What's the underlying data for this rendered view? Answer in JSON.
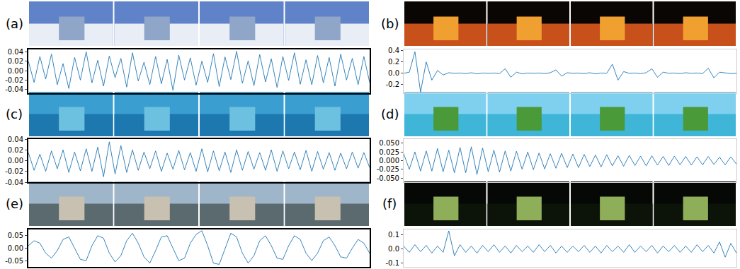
{
  "chart_data": [
    {
      "type": "line",
      "title": "(a)",
      "color": "#1f77b4",
      "tick_labels": "y",
      "values": [
        0.02,
        -0.025,
        0.03,
        -0.018,
        0.035,
        -0.03,
        0.015,
        -0.038,
        0.028,
        -0.02,
        0.04,
        -0.026,
        0.022,
        -0.033,
        0.031,
        -0.015,
        0.026,
        -0.035,
        0.038,
        -0.022,
        0.018,
        -0.03,
        0.03,
        -0.028,
        0.024,
        -0.042,
        0.033,
        -0.02,
        0.027,
        -0.031,
        0.02,
        -0.025,
        0.036,
        -0.034,
        0.029,
        -0.019,
        0.041,
        -0.027,
        0.021,
        -0.032,
        0.034,
        -0.024,
        0.025,
        -0.036,
        0.03,
        -0.021,
        0.038,
        -0.029,
        0.023,
        -0.03,
        0.032,
        -0.026,
        0.028,
        -0.033,
        0.035,
        -0.02,
        0.026,
        -0.03,
        0.03,
        -0.025
      ],
      "xlim": [
        0,
        59
      ],
      "ylim": [
        -0.048,
        0.045
      ],
      "yticks": [
        -0.04,
        -0.02,
        {
          "value": 0,
          "label": "0.00"
        },
        0.02,
        0.04
      ]
    },
    {
      "type": "line",
      "title": "(b)",
      "color": "#1f77b4",
      "tick_labels": "y",
      "values": [
        0,
        0.02,
        0.38,
        -0.33,
        0.2,
        -0.12,
        0.05,
        -0.03,
        0.01,
        0,
        0.005,
        -0.005,
        0.01,
        -0.01,
        0.005,
        0,
        0.005,
        -0.005,
        0.08,
        -0.07,
        0.02,
        -0.01,
        0.005,
        0,
        0.005,
        -0.005,
        0.01,
        0.06,
        -0.05,
        0.01,
        0,
        0.005,
        -0.005,
        0.01,
        -0.01,
        0.005,
        0,
        0.16,
        -0.12,
        0.03,
        0,
        0.005,
        -0.005,
        0.01,
        0.08,
        -0.07,
        0.02,
        0,
        0.005,
        -0.005,
        0.01,
        0,
        0.005,
        -0.005,
        0.09,
        -0.08,
        0.02,
        0.005,
        -0.005,
        0
      ],
      "xlim": [
        0,
        59
      ],
      "ylim": [
        -0.35,
        0.42
      ],
      "yticks": [
        -0.2,
        {
          "value": 0,
          "label": "0.0"
        },
        0.2,
        0.4
      ]
    },
    {
      "type": "line",
      "title": "(c)",
      "color": "#1f77b4",
      "tick_labels": "y",
      "values": [
        0.015,
        -0.018,
        0.012,
        -0.02,
        0.018,
        -0.015,
        0.02,
        -0.022,
        0.016,
        -0.019,
        0.022,
        -0.02,
        0.025,
        -0.03,
        0.035,
        -0.025,
        0.028,
        -0.022,
        0.02,
        -0.018,
        0.016,
        -0.015,
        0.018,
        -0.02,
        0.014,
        -0.016,
        0.019,
        -0.017,
        0.015,
        -0.02,
        0.022,
        -0.021,
        0.018,
        -0.019,
        0.016,
        -0.022,
        0.02,
        -0.018,
        0.017,
        -0.016,
        0.015,
        -0.018,
        0.02,
        -0.02,
        0.018,
        -0.015,
        0.016,
        -0.017,
        0.019,
        -0.02,
        0.017,
        -0.016,
        0.015,
        -0.018,
        0.014,
        -0.015,
        0.016,
        -0.014,
        0.015,
        -0.013
      ],
      "xlim": [
        0,
        59
      ],
      "ylim": [
        -0.04,
        0.04
      ],
      "yticks": [
        -0.04,
        -0.02,
        {
          "value": 0,
          "label": "0.00"
        },
        0.02,
        0.04
      ]
    },
    {
      "type": "line",
      "title": "(d)",
      "color": "#1f77b4",
      "tick_labels": "y",
      "values": [
        0.02,
        -0.025,
        0.025,
        -0.03,
        0.028,
        -0.03,
        0.035,
        -0.032,
        0.03,
        -0.035,
        0.038,
        -0.035,
        0.04,
        -0.04,
        0.036,
        -0.032,
        0.03,
        -0.033,
        0.028,
        -0.03,
        0.027,
        -0.025,
        0.025,
        -0.026,
        0.022,
        -0.024,
        0.02,
        -0.022,
        0.021,
        -0.02,
        0.019,
        -0.02,
        0.018,
        -0.017,
        0.016,
        -0.018,
        0.017,
        -0.015,
        0.014,
        -0.016,
        0.015,
        -0.014,
        0.013,
        -0.015,
        0.014,
        -0.013,
        0.012,
        -0.014,
        0.013,
        -0.012,
        0.012,
        -0.013,
        0.011,
        -0.012,
        0.012,
        -0.011,
        0.01,
        -0.012,
        0.011,
        -0.01
      ],
      "xlim": [
        0,
        59
      ],
      "ylim": [
        -0.062,
        0.062
      ],
      "yticks": [
        {
          "value": -0.05,
          "label": "-0.050"
        },
        -0.025,
        {
          "value": 0,
          "label": "0.000"
        },
        0.025,
        {
          "value": 0.05,
          "label": "0.050"
        }
      ]
    },
    {
      "type": "line",
      "title": "(e)",
      "color": "#1f77b4",
      "tick_labels": "y",
      "values": [
        0.01,
        0.03,
        0.02,
        -0.02,
        -0.04,
        -0.01,
        0.035,
        0.045,
        0,
        -0.045,
        -0.05,
        0.01,
        0.05,
        0.04,
        -0.02,
        -0.055,
        -0.03,
        0.03,
        0.06,
        0.02,
        -0.035,
        -0.06,
        -0.01,
        0.045,
        0.05,
        0,
        -0.05,
        -0.04,
        0.02,
        0.055,
        0.07,
        0.01,
        -0.06,
        -0.065,
        0,
        0.06,
        0.045,
        -0.02,
        -0.06,
        -0.03,
        0.03,
        0.05,
        0.01,
        -0.04,
        -0.045,
        0.01,
        0.05,
        0.035,
        -0.02,
        -0.05,
        -0.02,
        0.03,
        0.045,
        0.01,
        -0.035,
        -0.04,
        0,
        0.035,
        0.02,
        -0.02
      ],
      "xlim": [
        0,
        59
      ],
      "ylim": [
        -0.075,
        0.075
      ],
      "yticks": [
        -0.05,
        {
          "value": 0,
          "label": "0.00"
        },
        0.05
      ]
    },
    {
      "type": "line",
      "title": "(f)",
      "color": "#1f77b4",
      "tick_labels": "y",
      "values": [
        0.02,
        -0.025,
        0.03,
        -0.02,
        0.025,
        -0.03,
        0.02,
        -0.025,
        0.13,
        -0.05,
        0.03,
        -0.025,
        0.02,
        -0.03,
        0.025,
        -0.02,
        0.03,
        -0.025,
        0.02,
        -0.03,
        0.025,
        -0.02,
        0.02,
        -0.025,
        0.03,
        -0.02,
        0.025,
        -0.03,
        0.02,
        -0.025,
        0.02,
        -0.02,
        0.025,
        -0.025,
        0.02,
        -0.03,
        0.025,
        -0.02,
        0.02,
        -0.025,
        0.03,
        -0.025,
        0.02,
        -0.02,
        0.025,
        -0.03,
        0.02,
        -0.02,
        0.025,
        -0.025,
        0.02,
        -0.025,
        0.03,
        -0.02,
        0.025,
        -0.03,
        0.05,
        -0.06,
        0.04,
        -0.03
      ],
      "xlim": [
        0,
        59
      ],
      "ylim": [
        -0.13,
        0.14
      ],
      "yticks": [
        -0.1,
        {
          "value": 0,
          "label": "0.0"
        },
        0.1
      ]
    }
  ]
}
